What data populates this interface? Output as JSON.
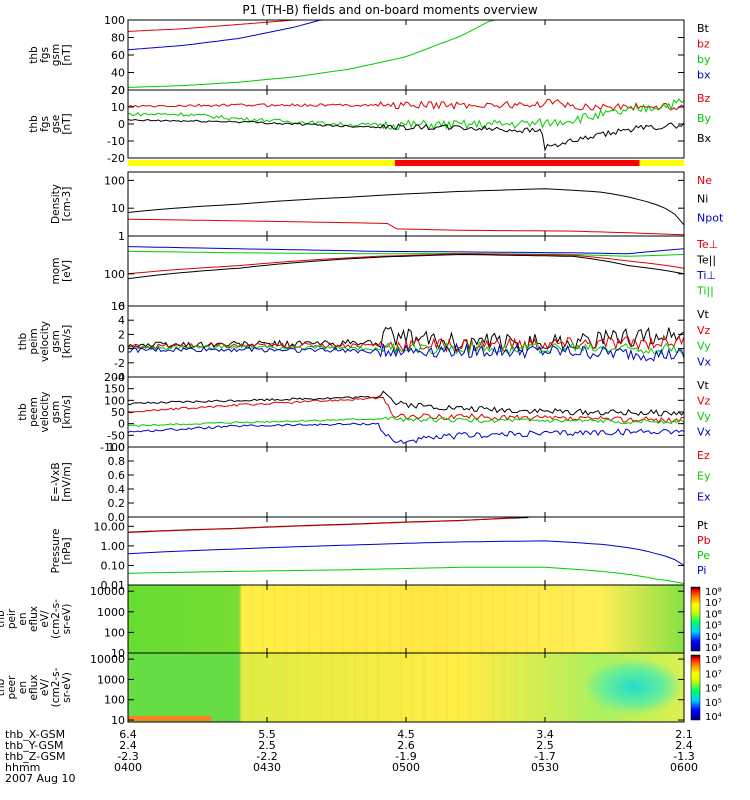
{
  "title": "P1 (TH-B) fields and on-board moments overview",
  "colors": {
    "black": "#000000",
    "red": "#dd0000",
    "green": "#00cc00",
    "blue": "#0000cc",
    "yellow": "#ffff00",
    "brightred": "#ff0000"
  },
  "chart_data": {
    "type": "line",
    "time_range": [
      "0400",
      "0600"
    ],
    "x_ticks": [
      {
        "hhmm": "0400",
        "x_gsm": "6.4",
        "y_gsm": "2.4",
        "z_gsm": "-2.3"
      },
      {
        "hhmm": "0430",
        "x_gsm": "5.5",
        "y_gsm": "2.5",
        "z_gsm": "-2.2"
      },
      {
        "hhmm": "0500",
        "x_gsm": "4.5",
        "y_gsm": "2.6",
        "z_gsm": "-1.9"
      },
      {
        "hhmm": "0530",
        "x_gsm": "3.4",
        "y_gsm": "2.5",
        "z_gsm": "-1.7"
      },
      {
        "hhmm": "0600",
        "x_gsm": "2.1",
        "y_gsm": "2.4",
        "z_gsm": "-1.3"
      }
    ],
    "footer_labels": [
      "thb_X-GSM",
      "thb_Y-GSM",
      "thb_Z-GSM",
      "hhmm",
      "2007 Aug 10"
    ],
    "mode_bar": [
      {
        "from": 0.0,
        "to": 0.48,
        "color": "yellow"
      },
      {
        "from": 0.48,
        "to": 0.92,
        "color": "red"
      },
      {
        "from": 0.92,
        "to": 1.0,
        "color": "yellow"
      }
    ],
    "panels": [
      {
        "id": "fgs_gsm",
        "ylabel": [
          "thb",
          "fgs",
          "gsm",
          "[nT]"
        ],
        "scale": "linear",
        "ylim": [
          20,
          100
        ],
        "yticks": [
          "20",
          "40",
          "60",
          "80",
          "100"
        ],
        "legend": [
          {
            "text": "Bt",
            "color": "black"
          },
          {
            "text": "bz",
            "color": "red"
          },
          {
            "text": "by",
            "color": "green"
          },
          {
            "text": "bx",
            "color": "blue"
          }
        ],
        "series": [
          {
            "name": "bz",
            "color": "red",
            "t": [
              0,
              0.1,
              0.2,
              0.3,
              0.35
            ],
            "v": [
              87,
              90,
              95,
              100,
              103
            ]
          },
          {
            "name": "bx",
            "color": "blue",
            "t": [
              0,
              0.1,
              0.2,
              0.3,
              0.37
            ],
            "v": [
              66,
              71,
              79,
              92,
              104
            ]
          },
          {
            "name": "by",
            "color": "green",
            "t": [
              0,
              0.1,
              0.2,
              0.3,
              0.4,
              0.5,
              0.6,
              0.66
            ],
            "v": [
              23,
              25,
              29,
              35,
              44,
              58,
              82,
              102
            ]
          }
        ]
      },
      {
        "id": "fgs_gse",
        "ylabel": [
          "thb",
          "fgs",
          "gse",
          "[nT]"
        ],
        "scale": "linear",
        "ylim": [
          -25,
          20
        ],
        "yticks": [
          "-20",
          "-10",
          "0",
          "10",
          "20"
        ],
        "legend": [
          {
            "text": "Bz",
            "color": "red"
          },
          {
            "text": "By",
            "color": "green"
          },
          {
            "text": "Bx",
            "color": "black"
          }
        ],
        "series": [
          {
            "name": "Bz",
            "color": "red",
            "t": [
              0,
              0.2,
              0.4,
              0.6,
              0.74,
              0.75,
              0.8,
              0.9,
              1.0
            ],
            "v": [
              9,
              10,
              10,
              10,
              10,
              13,
              9,
              9,
              9
            ],
            "noise": 1.5
          },
          {
            "name": "By",
            "color": "green",
            "t": [
              0,
              0.1,
              0.2,
              0.4,
              0.6,
              0.75,
              0.9,
              1.0
            ],
            "v": [
              4,
              4,
              1,
              -3,
              -3,
              -2,
              6,
              12
            ],
            "noise": 2
          },
          {
            "name": "Bx",
            "color": "black",
            "t": [
              0,
              0.2,
              0.4,
              0.6,
              0.745,
              0.75,
              0.9,
              1.0
            ],
            "v": [
              0,
              -1,
              -4,
              -5,
              -7,
              -18,
              -6,
              -3
            ],
            "noise": 1.2
          }
        ]
      },
      {
        "id": "density",
        "ylabel": [
          "Density",
          "[cm-3]"
        ],
        "scale": "log",
        "ylim": [
          1,
          200
        ],
        "yticks": [
          "1",
          "10",
          "100"
        ],
        "legend": [
          {
            "text": "Ne",
            "color": "red"
          },
          {
            "text": "Ni",
            "color": "black"
          },
          {
            "text": "Npot",
            "color": "blue"
          }
        ],
        "series": [
          {
            "name": "Ni",
            "color": "black",
            "t": [
              0,
              0.2,
              0.4,
              0.6,
              0.75,
              0.85,
              0.92,
              1.0
            ],
            "v": [
              7,
              14,
              25,
              40,
              50,
              38,
              20,
              2.5
            ]
          },
          {
            "name": "Ne",
            "color": "red",
            "t": [
              0,
              0.2,
              0.4,
              0.47,
              0.48,
              0.6,
              0.8,
              1.0
            ],
            "v": [
              4,
              3.5,
              3,
              2.8,
              1.8,
              1.6,
              1.5,
              1.1
            ]
          }
        ]
      },
      {
        "id": "temp",
        "ylabel": [
          "mom",
          "[eV]"
        ],
        "scale": "log",
        "ylim": [
          10,
          1500
        ],
        "yticks": [
          "10",
          "100"
        ],
        "legend": [
          {
            "text": "Te⊥",
            "color": "red"
          },
          {
            "text": "Te||",
            "color": "black"
          },
          {
            "text": "Ti⊥",
            "color": "blue"
          },
          {
            "text": "Ti||",
            "color": "green"
          }
        ],
        "series": [
          {
            "name": "Ti_perp",
            "color": "blue",
            "t": [
              0,
              0.2,
              0.45,
              0.6,
              0.8,
              0.9,
              1.0
            ],
            "v": [
              700,
              600,
              500,
              480,
              450,
              420,
              600
            ]
          },
          {
            "name": "Ti_par",
            "color": "green",
            "t": [
              0,
              0.2,
              0.45,
              0.6,
              0.8,
              0.9,
              1.0
            ],
            "v": [
              500,
              450,
              420,
              430,
              400,
              350,
              400
            ]
          },
          {
            "name": "Te_perp",
            "color": "red",
            "t": [
              0,
              0.2,
              0.45,
              0.6,
              0.8,
              0.9,
              1.0
            ],
            "v": [
              100,
              180,
              350,
              420,
              380,
              250,
              150
            ]
          },
          {
            "name": "Te_par",
            "color": "black",
            "t": [
              0,
              0.2,
              0.45,
              0.6,
              0.8,
              0.9,
              1.0
            ],
            "v": [
              70,
              150,
              330,
              400,
              350,
              180,
              100
            ]
          }
        ]
      },
      {
        "id": "velocity_peim",
        "ylabel": [
          "thb",
          "peim",
          "velocity",
          "gsm",
          "[km/s]"
        ],
        "scale": "linear",
        "ylim": [
          -4,
          6
        ],
        "yticks": [
          "-4",
          "-2",
          "0",
          "2",
          "4",
          "6"
        ],
        "legend": [
          {
            "text": "Vt",
            "color": "black"
          },
          {
            "text": "Vz",
            "color": "red"
          },
          {
            "text": "Vy",
            "color": "green"
          },
          {
            "text": "Vx",
            "color": "blue"
          }
        ],
        "series": [
          {
            "name": "Vt",
            "color": "black",
            "t": [
              0,
              0.2,
              0.45,
              0.46,
              0.6,
              0.8,
              1.0
            ],
            "v": [
              0.5,
              0.6,
              0.8,
              1.8,
              0.8,
              1,
              2
            ],
            "noise": 0.8
          },
          {
            "name": "Vz",
            "color": "red",
            "t": [
              0,
              0.2,
              0.45,
              0.6,
              0.8,
              1.0
            ],
            "v": [
              0.3,
              0.4,
              0.5,
              0.5,
              0.6,
              1
            ],
            "noise": 0.6
          },
          {
            "name": "Vy",
            "color": "green",
            "t": [
              0,
              0.2,
              0.45,
              0.6,
              0.8,
              1.0
            ],
            "v": [
              0.1,
              0.2,
              0,
              0.1,
              0.1,
              0
            ],
            "noise": 0.5
          },
          {
            "name": "Vx",
            "color": "blue",
            "t": [
              0,
              0.2,
              0.45,
              0.6,
              0.8,
              1.0
            ],
            "v": [
              -0.2,
              -0.1,
              -0.3,
              -0.3,
              -0.5,
              -1
            ],
            "noise": 0.6
          }
        ]
      },
      {
        "id": "velocity_peem",
        "ylabel": [
          "thb",
          "peem",
          "velocity",
          "gsm",
          "[km/s]"
        ],
        "scale": "linear",
        "ylim": [
          -100,
          200
        ],
        "yticks": [
          "-100",
          "-50",
          "0",
          "50",
          "100",
          "150",
          "200"
        ],
        "legend": [
          {
            "text": "Vt",
            "color": "black"
          },
          {
            "text": "Vz",
            "color": "red"
          },
          {
            "text": "Vy",
            "color": "green"
          },
          {
            "text": "Vx",
            "color": "blue"
          }
        ],
        "series": [
          {
            "name": "Vt",
            "color": "black",
            "t": [
              0,
              0.2,
              0.45,
              0.46,
              0.48,
              0.6,
              0.8,
              1.0
            ],
            "v": [
              85,
              100,
              115,
              150,
              85,
              65,
              50,
              45
            ],
            "noise": 8
          },
          {
            "name": "Vz",
            "color": "red",
            "t": [
              0,
              0.2,
              0.45,
              0.46,
              0.48,
              0.6,
              0.8,
              1.0
            ],
            "v": [
              50,
              80,
              110,
              100,
              30,
              30,
              20,
              15
            ],
            "noise": 8
          },
          {
            "name": "Vy",
            "color": "green",
            "t": [
              0,
              0.2,
              0.45,
              0.6,
              0.8,
              1.0
            ],
            "v": [
              -10,
              5,
              20,
              15,
              10,
              10
            ],
            "noise": 6
          },
          {
            "name": "Vx",
            "color": "blue",
            "t": [
              0,
              0.2,
              0.45,
              0.46,
              0.48,
              0.6,
              0.8,
              1.0
            ],
            "v": [
              -35,
              -10,
              0,
              -40,
              -80,
              -50,
              -40,
              -30
            ],
            "noise": 8
          }
        ]
      },
      {
        "id": "efield",
        "ylabel": [
          "E=-VxB",
          "[mV/m]"
        ],
        "scale": "linear",
        "ylim": [
          0,
          1
        ],
        "yticks": [
          "0.0",
          "0.2",
          "0.4",
          "0.6",
          "0.8",
          "1.0"
        ],
        "legend": [
          {
            "text": "Ez",
            "color": "red"
          },
          {
            "text": "Ey",
            "color": "green"
          },
          {
            "text": "Ex",
            "color": "blue"
          }
        ],
        "series": []
      },
      {
        "id": "pressure",
        "ylabel": [
          "Pressure",
          "[nPa]"
        ],
        "scale": "log",
        "ylim": [
          0.01,
          30
        ],
        "yticks": [
          "0.01",
          "0.10",
          "1.00",
          "10.00"
        ],
        "legend": [
          {
            "text": "Pt",
            "color": "black"
          },
          {
            "text": "Pb",
            "color": "red"
          },
          {
            "text": "Pe",
            "color": "green"
          },
          {
            "text": "Pi",
            "color": "blue"
          }
        ],
        "series": [
          {
            "name": "Pt",
            "color": "black",
            "t": [
              0,
              0.2,
              0.4,
              0.6,
              0.72
            ],
            "v": [
              5,
              8,
              13,
              20,
              28
            ]
          },
          {
            "name": "Pb",
            "color": "red",
            "t": [
              0,
              0.2,
              0.4,
              0.6,
              0.7
            ],
            "v": [
              4.8,
              7.8,
              12.5,
              19.5,
              28
            ]
          },
          {
            "name": "Pi",
            "color": "blue",
            "t": [
              0,
              0.2,
              0.4,
              0.6,
              0.75,
              0.85,
              0.95,
              1.0
            ],
            "v": [
              0.4,
              0.7,
              1.1,
              1.6,
              1.8,
              1.2,
              0.4,
              0.1
            ]
          },
          {
            "name": "Pe",
            "color": "green",
            "t": [
              0,
              0.2,
              0.4,
              0.6,
              0.75,
              0.85,
              0.95,
              1.0
            ],
            "v": [
              0.04,
              0.05,
              0.06,
              0.08,
              0.08,
              0.05,
              0.02,
              0.012
            ]
          }
        ]
      },
      {
        "id": "peir_eflux",
        "ylabel": [
          "thb",
          "peir",
          "en",
          "eflux",
          "eV/",
          "(cm2-s-",
          "sr-eV)"
        ],
        "scale": "log",
        "ylim": [
          10,
          20000
        ],
        "yticks": [
          "10",
          "100",
          "1000",
          "10000"
        ],
        "spectrogram": true,
        "colorbar": {
          "labels": [
            "10³",
            "10⁴",
            "10⁵",
            "10⁶",
            "10⁷",
            "10⁸"
          ]
        }
      },
      {
        "id": "peer_eflux",
        "ylabel": [
          "thb",
          "peer",
          "en",
          "eflux",
          "eV/",
          "(cm2-s-",
          "sr-eV)"
        ],
        "scale": "log",
        "ylim": [
          8,
          20000
        ],
        "yticks": [
          "10",
          "100",
          "1000",
          "10000"
        ],
        "spectrogram": true,
        "colorbar": {
          "labels": [
            "10⁴",
            "10⁵",
            "10⁶",
            "10⁷",
            "10⁸"
          ]
        }
      }
    ]
  }
}
